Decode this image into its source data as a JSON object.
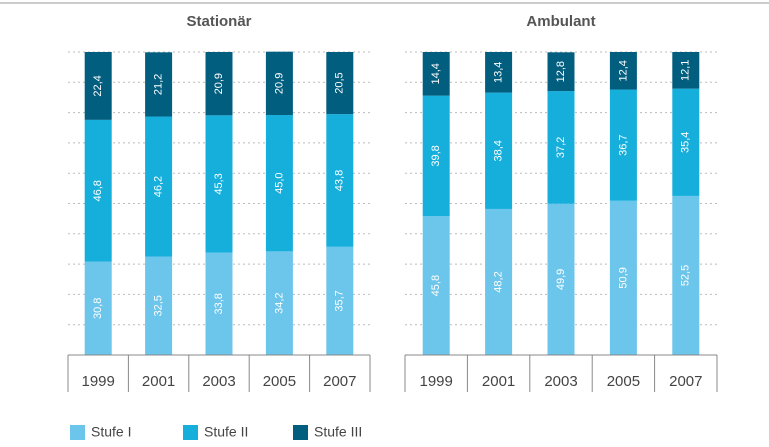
{
  "chart_data": [
    {
      "type": "bar",
      "stacked": true,
      "title": "Stationär",
      "categories": [
        "1999",
        "2001",
        "2003",
        "2005",
        "2007"
      ],
      "ylim": [
        0,
        100
      ],
      "yticks": [
        0,
        10,
        20,
        30,
        40,
        50,
        60,
        70,
        80,
        90,
        100
      ],
      "grid": true,
      "series": [
        {
          "name": "Stufe I",
          "color": "#6cc5ea",
          "values": [
            30.8,
            32.5,
            33.8,
            34.2,
            35.7
          ],
          "value_labels": [
            "30,8",
            "32,5",
            "33,8",
            "34,2",
            "35,7"
          ]
        },
        {
          "name": "Stufe II",
          "color": "#16afdc",
          "values": [
            46.8,
            46.2,
            45.3,
            45.0,
            43.8
          ],
          "value_labels": [
            "46,8",
            "46,2",
            "45,3",
            "45,0",
            "43,8"
          ]
        },
        {
          "name": "Stufe III",
          "color": "#025e7e",
          "values": [
            22.4,
            21.2,
            20.9,
            20.9,
            20.5
          ],
          "value_labels": [
            "22,4",
            "21,2",
            "20,9",
            "20,9",
            "20,5"
          ]
        }
      ]
    },
    {
      "type": "bar",
      "stacked": true,
      "title": "Ambulant",
      "categories": [
        "1999",
        "2001",
        "2003",
        "2005",
        "2007"
      ],
      "ylim": [
        0,
        100
      ],
      "yticks": [
        0,
        10,
        20,
        30,
        40,
        50,
        60,
        70,
        80,
        90,
        100
      ],
      "grid": true,
      "series": [
        {
          "color": "#6cc5ea",
          "values": [
            45.8,
            48.2,
            49.9,
            50.9,
            52.5
          ],
          "value_labels": [
            "45,8",
            "48,2",
            "49,9",
            "50,9",
            "52,5"
          ]
        },
        {
          "color": "#16afdc",
          "values": [
            39.8,
            38.4,
            37.2,
            36.7,
            35.4
          ],
          "value_labels": [
            "39,8",
            "38,4",
            "37,2",
            "36,7",
            "35,4"
          ]
        },
        {
          "color": "#025e7e",
          "values": [
            14.4,
            13.4,
            12.8,
            12.4,
            12.1
          ],
          "value_labels": [
            "14,4",
            "13,4",
            "12,8",
            "12,4",
            "12,1"
          ]
        }
      ]
    }
  ]
}
